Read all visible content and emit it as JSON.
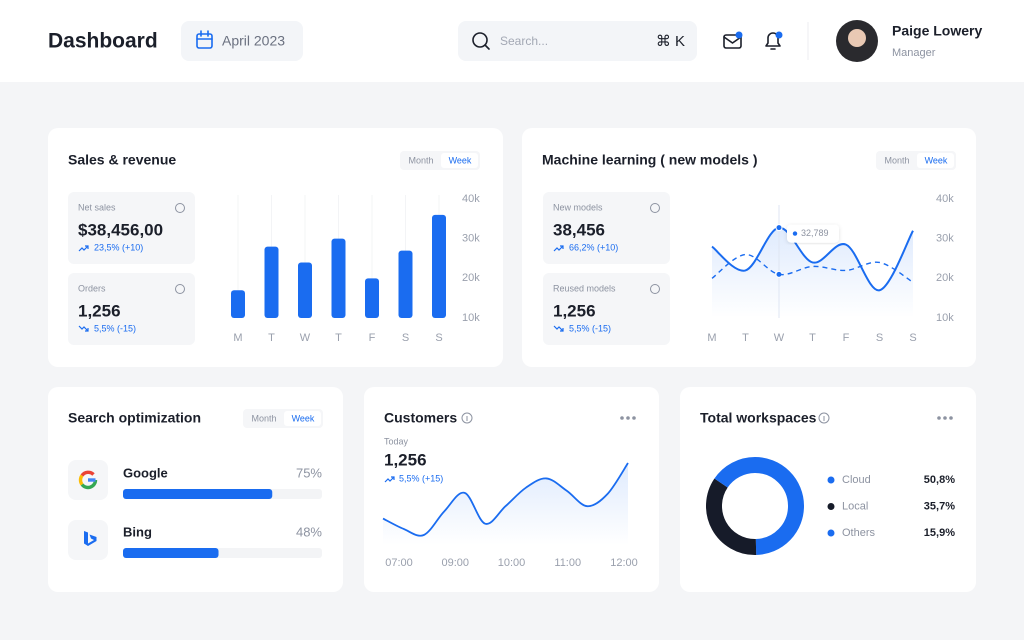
{
  "header": {
    "title": "Dashboard",
    "date": "April 2023",
    "search_placeholder": "Search...",
    "shortcut": "⌘ K",
    "user": {
      "name": "Paige Lowery",
      "role": "Manager"
    }
  },
  "sales": {
    "title": "Sales & revenue",
    "toggle": [
      "Month",
      "Week"
    ],
    "stats": [
      {
        "label": "Net sales",
        "value": "$38,456,00",
        "change": "23,5% (+10)",
        "trend": "up"
      },
      {
        "label": "Orders",
        "value": "1,256",
        "change": "5,5% (-15)",
        "trend": "down"
      }
    ],
    "chart": {
      "type": "bar",
      "categories": [
        "M",
        "T",
        "W",
        "T",
        "F",
        "S",
        "S"
      ],
      "values": [
        17000,
        28000,
        24000,
        30000,
        20000,
        27000,
        36000
      ],
      "color": "#1a6cf0",
      "ylim": [
        10000,
        40000
      ],
      "yticks": [
        {
          "value": 10000,
          "label": "10k"
        },
        {
          "value": 20000,
          "label": "20k"
        },
        {
          "value": 30000,
          "label": "30k"
        },
        {
          "value": 40000,
          "label": "40k"
        }
      ]
    }
  },
  "ml": {
    "title": "Machine learning ( new models )",
    "toggle": [
      "Month",
      "Week"
    ],
    "stats": [
      {
        "label": "New models",
        "value": "38,456",
        "change": "66,2% (+10)",
        "trend": "up"
      },
      {
        "label": "Reused models",
        "value": "1,256",
        "change": "5,5% (-15)",
        "trend": "down"
      }
    ],
    "chart": {
      "type": "line",
      "categories": [
        "M",
        "T",
        "W",
        "T",
        "F",
        "S",
        "S"
      ],
      "ylim": [
        10000,
        40000
      ],
      "yticks": [
        {
          "value": 10000,
          "label": "10k"
        },
        {
          "value": 20000,
          "label": "20k"
        },
        {
          "value": 30000,
          "label": "30k"
        },
        {
          "value": 40000,
          "label": "40k"
        }
      ],
      "series": [
        {
          "color": "#1a6cf0",
          "dashed": false,
          "values": [
            28000,
            22000,
            32789,
            24000,
            28500,
            17000,
            32000
          ],
          "value_labels": [
            null,
            null,
            "32,789",
            null,
            null,
            null,
            null
          ]
        },
        {
          "color": "#1a6cf0",
          "dashed": true,
          "values": [
            20000,
            26000,
            21000,
            23000,
            22000,
            24000,
            19000
          ]
        }
      ]
    }
  },
  "seo": {
    "title": "Search optimization",
    "toggle": [
      "Month",
      "Week"
    ],
    "chart": {
      "type": "progress",
      "categories": [
        "Google",
        "Bing"
      ],
      "values": [
        75,
        48
      ],
      "value_labels": [
        "75%",
        "48%"
      ],
      "xlim": [
        0,
        100
      ],
      "color": "#1a6cf0"
    }
  },
  "customers": {
    "title": "Customers",
    "subtitle": "Today",
    "value": "1,256",
    "change": "5,5% (+15)",
    "trend": "up",
    "chart": {
      "type": "line",
      "color": "#1a6cf0",
      "values": [
        28,
        18,
        12,
        35,
        53,
        23,
        40,
        58,
        67,
        55,
        40,
        52,
        82
      ],
      "xticks": [
        "07:00",
        "09:00",
        "10:00",
        "11:00",
        "12:00"
      ]
    }
  },
  "workspaces": {
    "title": "Total workspaces",
    "chart": {
      "type": "donut",
      "categories": [
        "Cloud",
        "Local",
        "Others"
      ],
      "values": [
        50.8,
        35.7,
        15.9
      ],
      "value_labels": [
        "50,8%",
        "35,7%",
        "15,9%"
      ],
      "colors": [
        "#1a6cf0",
        "#161b29",
        "#1a6cf0"
      ]
    }
  }
}
